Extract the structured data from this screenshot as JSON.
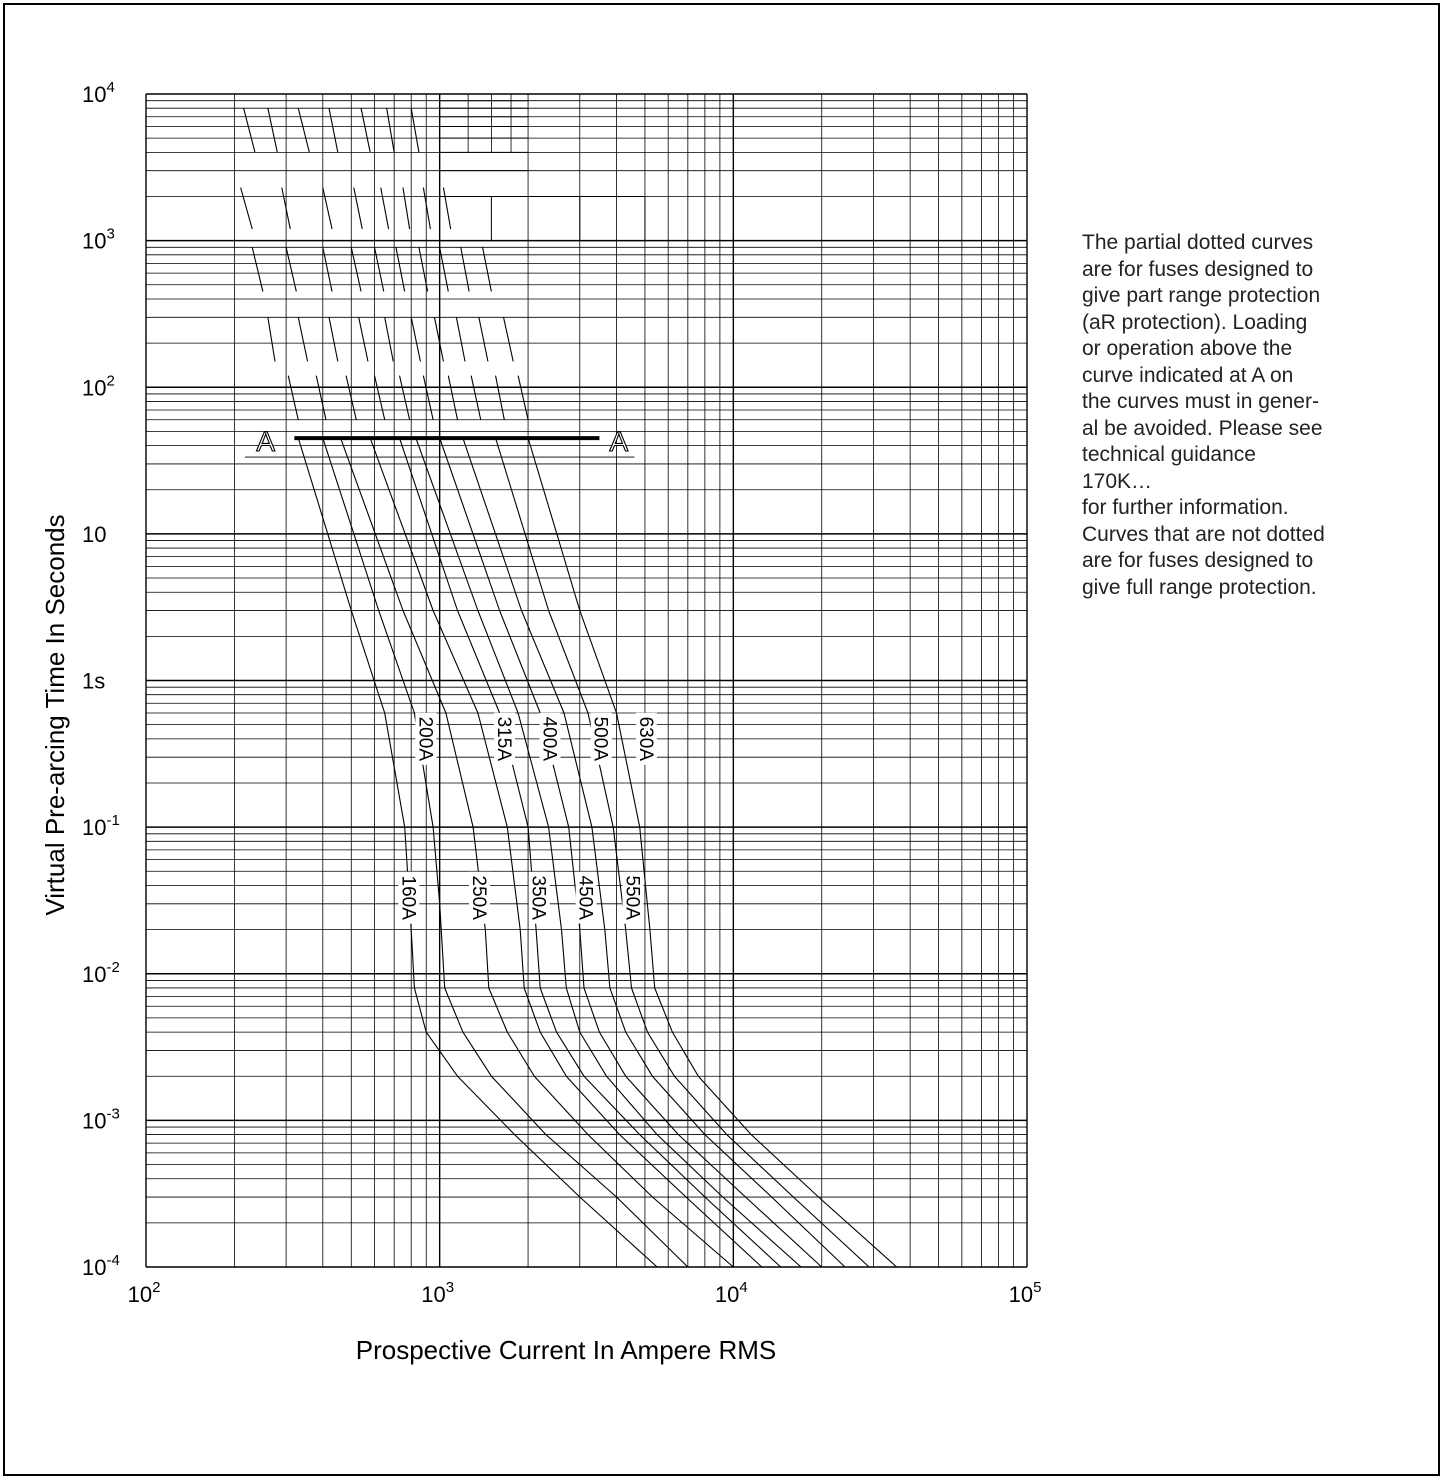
{
  "chart_data": {
    "type": "line",
    "xscale": "log",
    "yscale": "log",
    "xlim": [
      100,
      100000
    ],
    "ylim": [
      0.0001,
      10000
    ],
    "grid": true,
    "xlabel": "Prospective Current In Ampere RMS",
    "ylabel": "Virtual Pre-arcing Time In Seconds",
    "x_ticks": [
      {
        "value": 100,
        "base": "10",
        "exp": "2"
      },
      {
        "value": 1000,
        "base": "10",
        "exp": "3"
      },
      {
        "value": 10000,
        "base": "10",
        "exp": "4"
      },
      {
        "value": 100000,
        "base": "10",
        "exp": "5"
      }
    ],
    "y_ticks": [
      {
        "value": 10000,
        "base": "10",
        "exp": "4"
      },
      {
        "value": 1000,
        "base": "10",
        "exp": "3"
      },
      {
        "value": 100,
        "base": "10",
        "exp": "2"
      },
      {
        "value": 10,
        "base": "10",
        "exp": ""
      },
      {
        "value": 1,
        "base": "1s",
        "exp": ""
      },
      {
        "value": 0.1,
        "base": "10",
        "exp": "-1"
      },
      {
        "value": 0.01,
        "base": "10",
        "exp": "-2"
      },
      {
        "value": 0.001,
        "base": "10",
        "exp": "-3"
      },
      {
        "value": 0.0001,
        "base": "10",
        "exp": "-4"
      }
    ],
    "line_A": {
      "label_left": "A",
      "label_right": "A",
      "y": 45,
      "x_range": [
        320,
        3500
      ]
    },
    "series": [
      {
        "name": "160A",
        "points": [
          [
            330,
            45
          ],
          [
            500,
            3
          ],
          [
            650,
            0.6
          ],
          [
            760,
            0.1
          ],
          [
            800,
            0.02
          ],
          [
            820,
            0.008
          ],
          [
            900,
            0.004
          ],
          [
            1150,
            0.002
          ],
          [
            1800,
            0.0008
          ],
          [
            3000,
            0.0003
          ],
          [
            5500,
            0.0001
          ]
        ]
      },
      {
        "name": "200A",
        "points": [
          [
            400,
            45
          ],
          [
            620,
            3
          ],
          [
            820,
            0.6
          ],
          [
            950,
            0.1
          ],
          [
            1000,
            0.03
          ],
          [
            1040,
            0.008
          ],
          [
            1200,
            0.004
          ],
          [
            1500,
            0.002
          ],
          [
            2300,
            0.0008
          ],
          [
            4000,
            0.0003
          ],
          [
            7000,
            0.0001
          ]
        ]
      },
      {
        "name": "250A",
        "points": [
          [
            460,
            45
          ],
          [
            750,
            3
          ],
          [
            1050,
            0.6
          ],
          [
            1300,
            0.1
          ],
          [
            1430,
            0.02
          ],
          [
            1470,
            0.008
          ],
          [
            1700,
            0.004
          ],
          [
            2100,
            0.002
          ],
          [
            3200,
            0.0008
          ],
          [
            5300,
            0.0003
          ],
          [
            10000,
            0.0001
          ]
        ]
      },
      {
        "name": "315A",
        "points": [
          [
            580,
            45
          ],
          [
            950,
            3
          ],
          [
            1350,
            0.6
          ],
          [
            1700,
            0.1
          ],
          [
            1880,
            0.02
          ],
          [
            1940,
            0.008
          ],
          [
            2200,
            0.004
          ],
          [
            2700,
            0.002
          ],
          [
            4100,
            0.0008
          ],
          [
            6900,
            0.0003
          ],
          [
            12500,
            0.0001
          ]
        ]
      },
      {
        "name": "350A",
        "points": [
          [
            730,
            45
          ],
          [
            1150,
            3
          ],
          [
            1600,
            0.6
          ],
          [
            2000,
            0.1
          ],
          [
            2130,
            0.02
          ],
          [
            2200,
            0.008
          ],
          [
            2500,
            0.004
          ],
          [
            3100,
            0.002
          ],
          [
            4800,
            0.0008
          ],
          [
            8000,
            0.0003
          ],
          [
            14500,
            0.0001
          ]
        ]
      },
      {
        "name": "400A",
        "points": [
          [
            830,
            45
          ],
          [
            1350,
            3
          ],
          [
            1850,
            0.6
          ],
          [
            2350,
            0.1
          ],
          [
            2600,
            0.02
          ],
          [
            2700,
            0.008
          ],
          [
            3000,
            0.004
          ],
          [
            3700,
            0.002
          ],
          [
            5500,
            0.0008
          ],
          [
            9200,
            0.0003
          ],
          [
            17000,
            0.0001
          ]
        ]
      },
      {
        "name": "450A",
        "points": [
          [
            1000,
            45
          ],
          [
            1600,
            3
          ],
          [
            2200,
            0.6
          ],
          [
            2750,
            0.1
          ],
          [
            3000,
            0.02
          ],
          [
            3100,
            0.008
          ],
          [
            3500,
            0.004
          ],
          [
            4300,
            0.002
          ],
          [
            6500,
            0.0008
          ],
          [
            11000,
            0.0003
          ],
          [
            20000,
            0.0001
          ]
        ]
      },
      {
        "name": "500A",
        "points": [
          [
            1200,
            45
          ],
          [
            1900,
            3
          ],
          [
            2650,
            0.6
          ],
          [
            3300,
            0.1
          ],
          [
            3650,
            0.02
          ],
          [
            3800,
            0.008
          ],
          [
            4300,
            0.004
          ],
          [
            5300,
            0.002
          ],
          [
            8000,
            0.0008
          ],
          [
            13500,
            0.0003
          ],
          [
            24000,
            0.0001
          ]
        ]
      },
      {
        "name": "550A",
        "points": [
          [
            1550,
            45
          ],
          [
            2350,
            3
          ],
          [
            3200,
            0.6
          ],
          [
            3900,
            0.1
          ],
          [
            4300,
            0.02
          ],
          [
            4500,
            0.008
          ],
          [
            5100,
            0.004
          ],
          [
            6300,
            0.002
          ],
          [
            9500,
            0.0008
          ],
          [
            16000,
            0.0003
          ],
          [
            29000,
            0.0001
          ]
        ]
      },
      {
        "name": "630A",
        "points": [
          [
            2000,
            45
          ],
          [
            3000,
            3
          ],
          [
            4000,
            0.6
          ],
          [
            4800,
            0.1
          ],
          [
            5200,
            0.02
          ],
          [
            5400,
            0.008
          ],
          [
            6200,
            0.004
          ],
          [
            7600,
            0.002
          ],
          [
            11500,
            0.0008
          ],
          [
            19500,
            0.0003
          ],
          [
            36000,
            0.0001
          ]
        ]
      }
    ],
    "curve_label_positions": [
      {
        "text": "160A",
        "x": 770,
        "y": 0.033
      },
      {
        "text": "200A",
        "x": 880,
        "y": 0.4
      },
      {
        "text": "250A",
        "x": 1340,
        "y": 0.033
      },
      {
        "text": "315A",
        "x": 1630,
        "y": 0.4
      },
      {
        "text": "350A",
        "x": 2140,
        "y": 0.033
      },
      {
        "text": "400A",
        "x": 2330,
        "y": 0.4
      },
      {
        "text": "450A",
        "x": 3090,
        "y": 0.033
      },
      {
        "text": "500A",
        "x": 3480,
        "y": 0.4
      },
      {
        "text": "550A",
        "x": 4460,
        "y": 0.033
      },
      {
        "text": "630A",
        "x": 4960,
        "y": 0.4
      }
    ],
    "dotted_curve_segments": [
      {
        "points": [
          [
            215,
            8000
          ],
          [
            235,
            4000
          ]
        ]
      },
      {
        "points": [
          [
            260,
            8000
          ],
          [
            280,
            4000
          ]
        ]
      },
      {
        "points": [
          [
            330,
            8000
          ],
          [
            360,
            4000
          ]
        ]
      },
      {
        "points": [
          [
            420,
            8000
          ],
          [
            450,
            4000
          ]
        ]
      },
      {
        "points": [
          [
            540,
            8000
          ],
          [
            580,
            4000
          ]
        ]
      },
      {
        "points": [
          [
            660,
            8000
          ],
          [
            700,
            4000
          ]
        ]
      },
      {
        "points": [
          [
            800,
            8000
          ],
          [
            850,
            4000
          ]
        ]
      },
      {
        "points": [
          [
            210,
            2300
          ],
          [
            230,
            1200
          ]
        ]
      },
      {
        "points": [
          [
            290,
            2300
          ],
          [
            310,
            1200
          ]
        ]
      },
      {
        "points": [
          [
            400,
            2300
          ],
          [
            430,
            1200
          ]
        ]
      },
      {
        "points": [
          [
            510,
            2300
          ],
          [
            545,
            1200
          ]
        ]
      },
      {
        "points": [
          [
            630,
            2300
          ],
          [
            670,
            1200
          ]
        ]
      },
      {
        "points": [
          [
            750,
            2300
          ],
          [
            790,
            1200
          ]
        ]
      },
      {
        "points": [
          [
            880,
            2300
          ],
          [
            930,
            1200
          ]
        ]
      },
      {
        "points": [
          [
            1030,
            2300
          ],
          [
            1090,
            1200
          ]
        ]
      },
      {
        "points": [
          [
            230,
            900
          ],
          [
            250,
            450
          ]
        ]
      },
      {
        "points": [
          [
            300,
            900
          ],
          [
            325,
            450
          ]
        ]
      },
      {
        "points": [
          [
            400,
            900
          ],
          [
            430,
            450
          ]
        ]
      },
      {
        "points": [
          [
            500,
            900
          ],
          [
            540,
            450
          ]
        ]
      },
      {
        "points": [
          [
            600,
            900
          ],
          [
            645,
            450
          ]
        ]
      },
      {
        "points": [
          [
            710,
            900
          ],
          [
            760,
            450
          ]
        ]
      },
      {
        "points": [
          [
            850,
            900
          ],
          [
            910,
            450
          ]
        ]
      },
      {
        "points": [
          [
            1000,
            900
          ],
          [
            1070,
            450
          ]
        ]
      },
      {
        "points": [
          [
            1180,
            900
          ],
          [
            1260,
            450
          ]
        ]
      },
      {
        "points": [
          [
            1400,
            900
          ],
          [
            1500,
            450
          ]
        ]
      },
      {
        "points": [
          [
            260,
            300
          ],
          [
            275,
            150
          ]
        ]
      },
      {
        "points": [
          [
            330,
            300
          ],
          [
            355,
            150
          ]
        ]
      },
      {
        "points": [
          [
            420,
            300
          ],
          [
            450,
            150
          ]
        ]
      },
      {
        "points": [
          [
            530,
            300
          ],
          [
            570,
            150
          ]
        ]
      },
      {
        "points": [
          [
            650,
            300
          ],
          [
            695,
            150
          ]
        ]
      },
      {
        "points": [
          [
            800,
            300
          ],
          [
            860,
            150
          ]
        ]
      },
      {
        "points": [
          [
            960,
            300
          ],
          [
            1030,
            150
          ]
        ]
      },
      {
        "points": [
          [
            1140,
            300
          ],
          [
            1220,
            150
          ]
        ]
      },
      {
        "points": [
          [
            1360,
            300
          ],
          [
            1460,
            150
          ]
        ]
      },
      {
        "points": [
          [
            1650,
            300
          ],
          [
            1780,
            150
          ]
        ]
      },
      {
        "points": [
          [
            305,
            120
          ],
          [
            330,
            60
          ]
        ]
      },
      {
        "points": [
          [
            380,
            120
          ],
          [
            410,
            60
          ]
        ]
      },
      {
        "points": [
          [
            480,
            120
          ],
          [
            520,
            60
          ]
        ]
      },
      {
        "points": [
          [
            600,
            120
          ],
          [
            650,
            60
          ]
        ]
      },
      {
        "points": [
          [
            730,
            120
          ],
          [
            790,
            60
          ]
        ]
      },
      {
        "points": [
          [
            880,
            120
          ],
          [
            950,
            60
          ]
        ]
      },
      {
        "points": [
          [
            1070,
            120
          ],
          [
            1150,
            60
          ]
        ]
      },
      {
        "points": [
          [
            1280,
            120
          ],
          [
            1380,
            60
          ]
        ]
      },
      {
        "points": [
          [
            1550,
            120
          ],
          [
            1660,
            60
          ]
        ]
      },
      {
        "points": [
          [
            1850,
            120
          ],
          [
            2000,
            60
          ]
        ]
      }
    ]
  },
  "note": {
    "lines": [
      "The partial dotted curves",
      "are for fuses designed to",
      "give part range protection",
      "(aR protection). Loading",
      "or operation above the",
      "curve indicated at A on",
      "the curves must in gener-",
      "al be avoided. Please see",
      "technical guidance",
      "170K…",
      "for further information.",
      "Curves that are not dotted",
      "are for fuses designed to",
      "give full range protection."
    ]
  }
}
